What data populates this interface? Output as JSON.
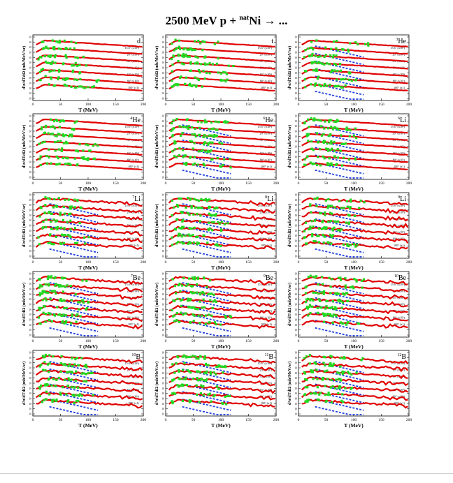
{
  "figure": {
    "title_prefix": "2500 MeV p + ",
    "title_sup": "nat",
    "title_rest": "Ni → ...",
    "colors": {
      "model": "#e00000",
      "other_model": "#1f3fe0",
      "data": "#22d922"
    }
  },
  "chart_data": [
    {
      "type": "line",
      "panel": "d",
      "nuclide_mass": "",
      "nuclide_symbol": "d",
      "show_blue": false,
      "xlabel": "T (MeV)",
      "ylabel": "d²σ/dTdΩ (mb/MeV/sr)",
      "xlim": [
        0,
        200
      ],
      "xticks": [
        "0",
        "50",
        "100",
        "150",
        "200"
      ],
      "angles": [
        "15.6° (x10⁶)",
        "20° (x10⁵)",
        "35° (x10⁴)",
        "50° (x10³)",
        "65° (x10²)",
        "80° (x10¹)",
        "100° (x1)"
      ]
    },
    {
      "type": "line",
      "panel": "t",
      "nuclide_mass": "",
      "nuclide_symbol": "t",
      "show_blue": false,
      "xlabel": "T (MeV)",
      "ylabel": "d²σ/dTdΩ (mb/MeV/sr)",
      "xlim": [
        0,
        200
      ],
      "xticks": [
        "0",
        "50",
        "100",
        "150",
        "200"
      ],
      "angles": [
        "15.6° (x10⁶)",
        "20° (x10⁵)",
        "35° (x10⁴)",
        "50° (x10³)",
        "65° (x10²)",
        "80° (x10¹)",
        "100° (x1)"
      ]
    },
    {
      "type": "line",
      "panel": "3He",
      "nuclide_mass": "3",
      "nuclide_symbol": "He",
      "show_blue": true,
      "xlabel": "T (MeV)",
      "ylabel": "d²σ/dTdΩ (mb/MeV/sr)",
      "xlim": [
        0,
        200
      ],
      "xticks": [
        "0",
        "50",
        "100",
        "150",
        "200"
      ],
      "angles": [
        "15.6° (x10⁶)",
        "20° (x10⁵)",
        "35° (x10⁴)",
        "50° (x10³)",
        "65° (x10²)",
        "80° (x10¹)",
        "100° (x1)"
      ]
    },
    {
      "type": "line",
      "panel": "4He",
      "nuclide_mass": "4",
      "nuclide_symbol": "He",
      "show_blue": false,
      "xlabel": "T (MeV)",
      "ylabel": "d²σ/dTdΩ (mb/MeV/sr)",
      "xlim": [
        0,
        200
      ],
      "xticks": [
        "0",
        "50",
        "100",
        "150",
        "200"
      ],
      "angles": [
        "15.6° (x10⁶)",
        "20° (x10⁵)",
        "35° (x10⁴)",
        "50° (x10³)",
        "65° (x10²)",
        "80° (x10¹)",
        "100° (x1)"
      ]
    },
    {
      "type": "line",
      "panel": "6He",
      "nuclide_mass": "6",
      "nuclide_symbol": "He",
      "show_blue": true,
      "xlabel": "T (MeV)",
      "ylabel": "d²σ/dTdΩ (mb/MeV/sr)",
      "xlim": [
        0,
        200
      ],
      "xticks": [
        "0",
        "50",
        "100",
        "150",
        "200"
      ],
      "angles": [
        "15.6° (x10⁶)",
        "20° (x10⁵)",
        "35° (x10⁴)",
        "50° (x10³)",
        "65° (x10²)",
        "80° (x10¹)",
        "100° (x1)"
      ]
    },
    {
      "type": "line",
      "panel": "6Li",
      "nuclide_mass": "6",
      "nuclide_symbol": "Li",
      "show_blue": true,
      "xlabel": "T (MeV)",
      "ylabel": "d²σ/dTdΩ (mb/MeV/sr)",
      "xlim": [
        0,
        200
      ],
      "xticks": [
        "0",
        "50",
        "100",
        "150",
        "200"
      ],
      "angles": [
        "15.6° (x10⁶)",
        "20° (x10⁵)",
        "35° (x10⁴)",
        "50° (x10³)",
        "65° (x10²)",
        "80° (x10¹)",
        "100° (x1)"
      ]
    },
    {
      "type": "line",
      "panel": "7Li",
      "nuclide_mass": "7",
      "nuclide_symbol": "Li",
      "show_blue": true,
      "xlabel": "T (MeV)",
      "ylabel": "d²σ/dTdΩ (mb/MeV/sr)",
      "xlim": [
        0,
        200
      ],
      "xticks": [
        "0",
        "50",
        "100",
        "150",
        "200"
      ],
      "angles": [
        "15.6° (x10⁶)",
        "20° (x10⁵)",
        "35° (x10⁴)",
        "50° (x10³)",
        "65° (x10²)",
        "80° (x10¹)",
        "100° (x1)"
      ]
    },
    {
      "type": "line",
      "panel": "8Li",
      "nuclide_mass": "8",
      "nuclide_symbol": "Li",
      "show_blue": true,
      "xlabel": "T (MeV)",
      "ylabel": "d²σ/dTdΩ (mb/MeV/sr)",
      "xlim": [
        0,
        200
      ],
      "xticks": [
        "0",
        "50",
        "100",
        "150",
        "200"
      ],
      "angles": [
        "15.6° (x10⁶)",
        "20° (x10⁵)",
        "35° (x10⁴)",
        "50° (x10³)",
        "65° (x10²)",
        "80° (x10¹)",
        "100° (x1)"
      ]
    },
    {
      "type": "line",
      "panel": "9Li",
      "nuclide_mass": "9",
      "nuclide_symbol": "Li",
      "show_blue": true,
      "xlabel": "T (MeV)",
      "ylabel": "d²σ/dTdΩ (mb/MeV/sr)",
      "xlim": [
        0,
        200
      ],
      "xticks": [
        "0",
        "50",
        "100",
        "150",
        "200"
      ],
      "angles": [
        "15.6° (x10⁶)",
        "20° (x10⁵)",
        "35° (x10⁴)",
        "50° (x10³)",
        "65° (x10²)",
        "80° (x10¹)",
        "100° (x1)"
      ]
    },
    {
      "type": "line",
      "panel": "7Be",
      "nuclide_mass": "7",
      "nuclide_symbol": "Be",
      "show_blue": true,
      "xlabel": "T (MeV)",
      "ylabel": "d²σ/dTdΩ (mb/MeV/sr)",
      "xlim": [
        0,
        200
      ],
      "xticks": [
        "0",
        "50",
        "100",
        "150",
        "200"
      ],
      "angles": [
        "15.6° (x10⁶)",
        "20° (x10⁵)",
        "35° (x10⁴)",
        "50° (x10³)",
        "65° (x10²)",
        "80° (x10¹)",
        "100° (x1)"
      ]
    },
    {
      "type": "line",
      "panel": "9Be",
      "nuclide_mass": "9",
      "nuclide_symbol": "Be",
      "show_blue": true,
      "xlabel": "T (MeV)",
      "ylabel": "d²σ/dTdΩ (mb/MeV/sr)",
      "xlim": [
        0,
        200
      ],
      "xticks": [
        "0",
        "50",
        "100",
        "150",
        "200"
      ],
      "angles": [
        "15.6° (x10⁶)",
        "20° (x10⁵)",
        "35° (x10⁴)",
        "50° (x10³)",
        "65° (x10²)",
        "80° (x10¹)",
        "100° (x1)"
      ]
    },
    {
      "type": "line",
      "panel": "10Be",
      "nuclide_mass": "10",
      "nuclide_symbol": "Be",
      "show_blue": true,
      "xlabel": "T (MeV)",
      "ylabel": "d²σ/dTdΩ (mb/MeV/sr)",
      "xlim": [
        0,
        200
      ],
      "xticks": [
        "0",
        "50",
        "100",
        "150",
        "200"
      ],
      "angles": [
        "15.6° (x10⁶)",
        "20° (x10⁵)",
        "35° (x10⁴)",
        "50° (x10³)",
        "65° (x10²)",
        "80° (x10¹)",
        "100° (x1)"
      ]
    },
    {
      "type": "line",
      "panel": "10B",
      "nuclide_mass": "10",
      "nuclide_symbol": "B",
      "show_blue": true,
      "xlabel": "T (MeV)",
      "ylabel": "d²σ/dTdΩ (mb/MeV/sr)",
      "xlim": [
        0,
        200
      ],
      "xticks": [
        "0",
        "50",
        "100",
        "150",
        "200"
      ],
      "angles": [
        "15.6° (x10⁶)",
        "20° (x10⁵)",
        "35° (x10⁴)",
        "50° (x10³)",
        "65° (x10²)",
        "80° (x10¹)",
        "100° (x1)"
      ]
    },
    {
      "type": "line",
      "panel": "11B",
      "nuclide_mass": "11",
      "nuclide_symbol": "B",
      "show_blue": true,
      "xlabel": "T (MeV)",
      "ylabel": "d²σ/dTdΩ (mb/MeV/sr)",
      "xlim": [
        0,
        200
      ],
      "xticks": [
        "0",
        "50",
        "100",
        "150",
        "200"
      ],
      "angles": [
        "15.6° (x10⁶)",
        "20° (x10⁵)",
        "35° (x10⁴)",
        "50° (x10³)",
        "65° (x10²)",
        "80° (x10¹)",
        "100° (x1)"
      ]
    },
    {
      "type": "line",
      "panel": "12B",
      "nuclide_mass": "12",
      "nuclide_symbol": "B",
      "show_blue": true,
      "xlabel": "T (MeV)",
      "ylabel": "d²σ/dTdΩ (mb/MeV/sr)",
      "xlim": [
        0,
        200
      ],
      "xticks": [
        "0",
        "50",
        "100",
        "150",
        "200"
      ],
      "angles": [
        "15.6° (x10⁶)",
        "20° (x10⁵)",
        "35° (x10⁴)",
        "50° (x10³)",
        "65° (x10²)",
        "80° (x10¹)",
        "100° (x1)"
      ]
    }
  ]
}
